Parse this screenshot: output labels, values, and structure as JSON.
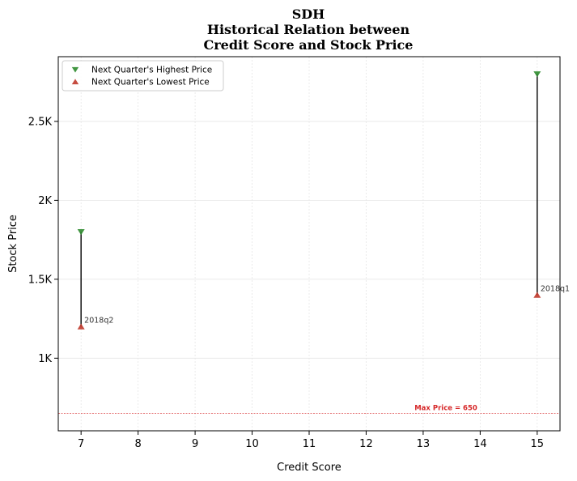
{
  "chart_data": {
    "type": "scatter",
    "title_lines": [
      "SDH",
      "Historical Relation between",
      "Credit Score and Stock Price"
    ],
    "xlabel": "Credit Score",
    "ylabel": "Stock Price",
    "xlim": [
      6.6,
      15.4
    ],
    "ylim": [
      540,
      2910
    ],
    "x_ticks": [
      7,
      8,
      9,
      10,
      11,
      12,
      13,
      14,
      15
    ],
    "y_ticks": [
      {
        "value": 1000,
        "label": "1K"
      },
      {
        "value": 1500,
        "label": "1.5K"
      },
      {
        "value": 2000,
        "label": "2K"
      },
      {
        "value": 2500,
        "label": "2.5K"
      }
    ],
    "grid": true,
    "legend_position": "top-left",
    "series": [
      {
        "name": "Next Quarter's Highest Price",
        "marker": "triangle-down",
        "color": "#2e8b2e",
        "points": [
          {
            "x": 7,
            "y": 1800
          },
          {
            "x": 15,
            "y": 2800
          }
        ]
      },
      {
        "name": "Next Quarter's Lowest Price",
        "marker": "triangle-up",
        "color": "#c0392b",
        "points": [
          {
            "x": 7,
            "y": 1200
          },
          {
            "x": 15,
            "y": 1400
          }
        ]
      }
    ],
    "annotations": [
      {
        "x": 7,
        "y": 1200,
        "text": "2018q2"
      },
      {
        "x": 15,
        "y": 1400,
        "text": "2018q1"
      }
    ],
    "reference_line": {
      "y": 650,
      "label": "Max Price = 650",
      "color": "#d62728"
    }
  }
}
